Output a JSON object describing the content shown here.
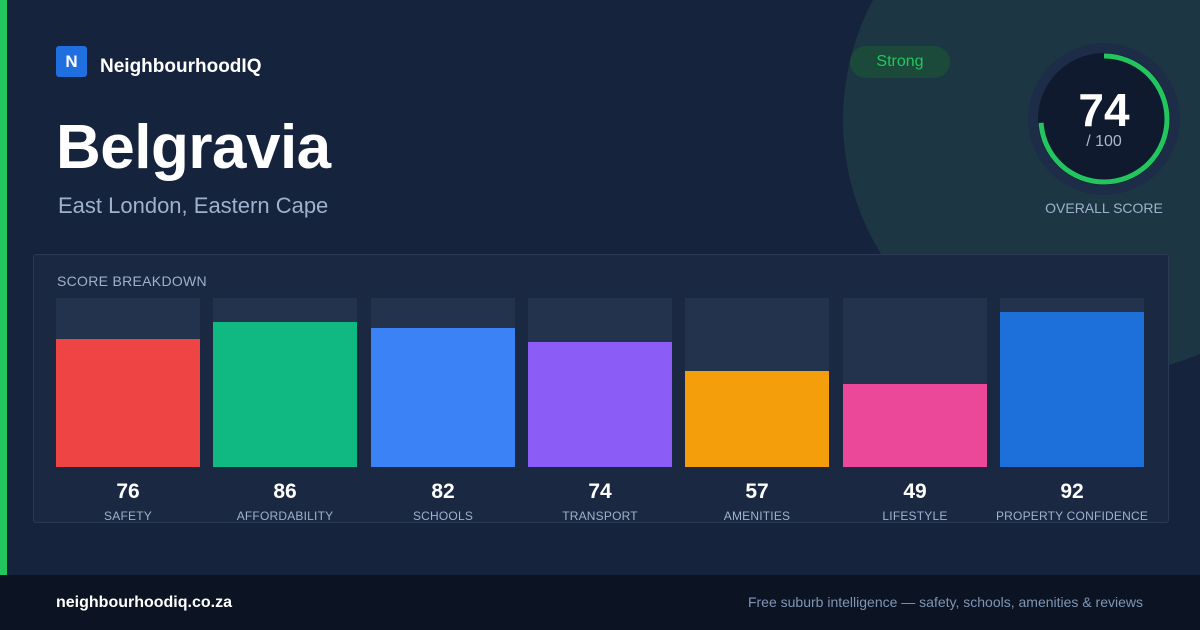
{
  "brand": {
    "logo_letter": "N",
    "name": "NeighbourhoodIQ"
  },
  "suburb": {
    "name": "Belgravia",
    "location": "East London, Eastern Cape"
  },
  "rating_badge": "Strong",
  "overall": {
    "score": "74",
    "max_label": "/ 100",
    "label": "OVERALL SCORE",
    "fraction": 0.74
  },
  "breakdown": {
    "title": "SCORE BREAKDOWN",
    "items": [
      {
        "label": "SAFETY",
        "value": "76",
        "score": 76,
        "color": "#ef4444"
      },
      {
        "label": "AFFORDABILITY",
        "value": "86",
        "score": 86,
        "color": "#10b981"
      },
      {
        "label": "SCHOOLS",
        "value": "82",
        "score": 82,
        "color": "#3b82f6"
      },
      {
        "label": "TRANSPORT",
        "value": "74",
        "score": 74,
        "color": "#8b5cf6"
      },
      {
        "label": "AMENITIES",
        "value": "57",
        "score": 57,
        "color": "#f59e0b"
      },
      {
        "label": "LIFESTYLE",
        "value": "49",
        "score": 49,
        "color": "#ec4899"
      },
      {
        "label": "PROPERTY CONFIDENCE",
        "value": "92",
        "score": 92,
        "color": "#1d6fd9"
      }
    ]
  },
  "footer": {
    "url": "neighbourhoodiq.co.za",
    "tagline": "Free suburb intelligence — safety, schools, amenities & reviews"
  },
  "colors": {
    "accent": "#22c55e",
    "brand": "#1f6fe0",
    "background": "#15233c"
  }
}
